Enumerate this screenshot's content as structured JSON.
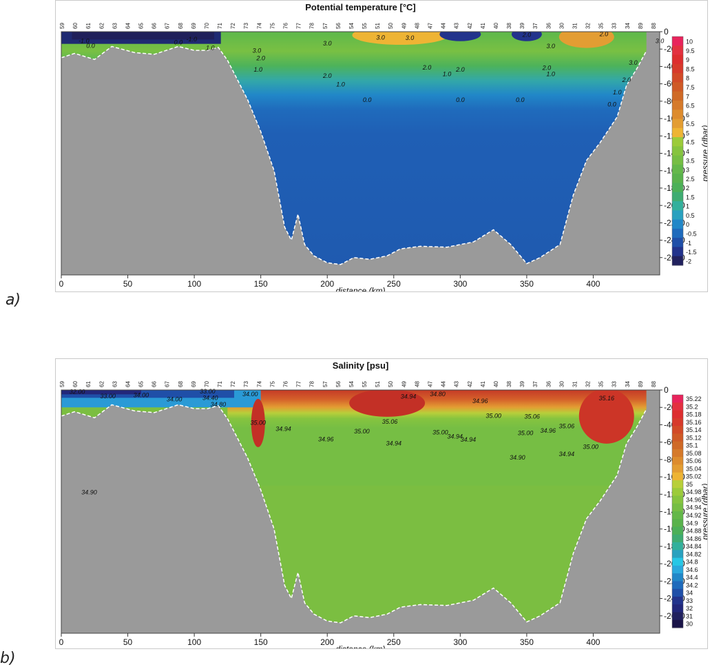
{
  "panel_labels": [
    "a)",
    "b)"
  ],
  "chart_data": [
    {
      "type": "heatmap",
      "title": "Potential temperature [°C]",
      "xlabel": "distance (km)",
      "ylabel": "pressure (dbar)",
      "xlim": [
        0,
        450
      ],
      "ylim": [
        -2800,
        0
      ],
      "xticks": [
        "0",
        "50",
        "100",
        "150",
        "200",
        "250",
        "300",
        "350",
        "400"
      ],
      "yticks": [
        "0",
        "-200",
        "-400",
        "-600",
        "-800",
        "-1000",
        "-1200",
        "-1400",
        "-1600",
        "-1800",
        "-2000",
        "-2200",
        "-2400",
        "-2600"
      ],
      "stations": [
        "59",
        "60",
        "61",
        "62",
        "63",
        "64",
        "65",
        "66",
        "67",
        "68",
        "69",
        "70",
        "71",
        "72",
        "73",
        "74",
        "75",
        "76",
        "77",
        "78",
        "57",
        "56",
        "54",
        "55",
        "51",
        "50",
        "49",
        "48",
        "47",
        "44",
        "43",
        "42",
        "41",
        "40",
        "38",
        "39",
        "37",
        "36",
        "30",
        "31",
        "32",
        "35",
        "33",
        "34",
        "89",
        "88"
      ],
      "colorbar_labels": [
        "10",
        "9.5",
        "9",
        "8.5",
        "8",
        "7.5",
        "7",
        "6.5",
        "6",
        "5.5",
        "5",
        "4.5",
        "4",
        "3.5",
        "3",
        "2.5",
        "2",
        "1.5",
        "1",
        "0.5",
        "0",
        "-0.5",
        "-1",
        "-1.5",
        "-2"
      ],
      "colorbar_colors": [
        "#e8245c",
        "#e33140",
        "#dd2e2f",
        "#d73a2b",
        "#d24a27",
        "#cf5a26",
        "#cf6a27",
        "#d57a2b",
        "#dd8c2e",
        "#e39d33",
        "#eeb434",
        "#9ccb3a",
        "#86c43f",
        "#76be44",
        "#64b84a",
        "#59b24c",
        "#4cb058",
        "#3fac72",
        "#33b09c",
        "#2aa1bf",
        "#2187c8",
        "#1f6bbc",
        "#1f4fa8",
        "#22338c",
        "#21215e"
      ],
      "contour_labels": [
        {
          "text": "-1.0",
          "x": 17,
          "y": -130
        },
        {
          "text": "0.0",
          "x": 22,
          "y": -185
        },
        {
          "text": "-1.0",
          "x": 98,
          "y": -110
        },
        {
          "text": "0.0",
          "x": 88,
          "y": -145
        },
        {
          "text": "1.0",
          "x": 112,
          "y": -210
        },
        {
          "text": "3.0",
          "x": 147,
          "y": -240
        },
        {
          "text": "2.0",
          "x": 150,
          "y": -330
        },
        {
          "text": "1.0",
          "x": 148,
          "y": -460
        },
        {
          "text": "3.0",
          "x": 200,
          "y": -160
        },
        {
          "text": "3.0",
          "x": 240,
          "y": -90
        },
        {
          "text": "3.0",
          "x": 262,
          "y": -95
        },
        {
          "text": "2.0",
          "x": 200,
          "y": -530
        },
        {
          "text": "1.0",
          "x": 210,
          "y": -630
        },
        {
          "text": "0.0",
          "x": 230,
          "y": -810
        },
        {
          "text": "2.0",
          "x": 275,
          "y": -435
        },
        {
          "text": "2.0",
          "x": 300,
          "y": -460
        },
        {
          "text": "1.0",
          "x": 290,
          "y": -510
        },
        {
          "text": "0.0",
          "x": 300,
          "y": -810
        },
        {
          "text": "2.0",
          "x": 365,
          "y": -440
        },
        {
          "text": "1.0",
          "x": 368,
          "y": -510
        },
        {
          "text": "0.0",
          "x": 345,
          "y": -810
        },
        {
          "text": "3.0",
          "x": 368,
          "y": -190
        },
        {
          "text": "2.0",
          "x": 350,
          "y": -60
        },
        {
          "text": "2.0",
          "x": 408,
          "y": -50
        },
        {
          "text": "3.0",
          "x": 450,
          "y": -130
        },
        {
          "text": "3.0",
          "x": 430,
          "y": -380
        },
        {
          "text": "2.0",
          "x": 425,
          "y": -580
        },
        {
          "text": "1.0",
          "x": 418,
          "y": -720
        },
        {
          "text": "0.0",
          "x": 414,
          "y": -860
        }
      ]
    },
    {
      "type": "heatmap",
      "title": "Salinity [psu]",
      "xlabel": "distance (km)",
      "ylabel": "pressure (dbar)",
      "xlim": [
        0,
        450
      ],
      "ylim": [
        -2800,
        0
      ],
      "xticks": [
        "0",
        "50",
        "100",
        "150",
        "200",
        "250",
        "300",
        "350",
        "400"
      ],
      "yticks": [
        "0",
        "-200",
        "-400",
        "-600",
        "-800",
        "-1000",
        "-1200",
        "-1400",
        "-1600",
        "-1800",
        "-2000",
        "-2200",
        "-2400",
        "-2600"
      ],
      "stations": [
        "59",
        "60",
        "61",
        "62",
        "63",
        "64",
        "65",
        "66",
        "67",
        "68",
        "69",
        "70",
        "71",
        "72",
        "73",
        "74",
        "75",
        "76",
        "77",
        "78",
        "57",
        "56",
        "54",
        "55",
        "51",
        "50",
        "49",
        "48",
        "47",
        "44",
        "43",
        "42",
        "41",
        "40",
        "38",
        "39",
        "37",
        "36",
        "30",
        "31",
        "32",
        "35",
        "33",
        "34",
        "89",
        "88"
      ],
      "colorbar_labels": [
        "35.22",
        "35.2",
        "35.18",
        "35.16",
        "35.14",
        "35.12",
        "35.1",
        "35.08",
        "35.06",
        "35.04",
        "35.02",
        "35",
        "34.98",
        "34.96",
        "34.94",
        "34.92",
        "34.9",
        "34.88",
        "34.86",
        "34.84",
        "34.82",
        "34.8",
        "34.6",
        "34.4",
        "34.2",
        "34",
        "33",
        "32",
        "31",
        "30"
      ],
      "colorbar_colors": [
        "#e8245c",
        "#e33140",
        "#dd2e2f",
        "#d73a2b",
        "#d24a27",
        "#cf5a26",
        "#cf6a27",
        "#d57a2b",
        "#dd8c2e",
        "#e39d33",
        "#eeb434",
        "#b8cf3a",
        "#9ccb3a",
        "#86c43f",
        "#76be44",
        "#64b84a",
        "#59b24c",
        "#4cb058",
        "#3fac72",
        "#33b09c",
        "#2aa1bf",
        "#26c7e6",
        "#2aa9dd",
        "#2187c8",
        "#1f6bbc",
        "#1f4fa8",
        "#22338c",
        "#22277a",
        "#21215e",
        "#1a1448"
      ],
      "contour_labels": [
        {
          "text": "32.00",
          "x": 12,
          "y": -45
        },
        {
          "text": "33.00",
          "x": 35,
          "y": -95
        },
        {
          "text": "34.00",
          "x": 60,
          "y": -85
        },
        {
          "text": "34.00",
          "x": 85,
          "y": -130
        },
        {
          "text": "34.40",
          "x": 112,
          "y": -115
        },
        {
          "text": "33.00",
          "x": 110,
          "y": -40
        },
        {
          "text": "34.00",
          "x": 142,
          "y": -70
        },
        {
          "text": "34.80",
          "x": 118,
          "y": -190
        },
        {
          "text": "35.00",
          "x": 148,
          "y": -400
        },
        {
          "text": "34.94",
          "x": 167,
          "y": -470
        },
        {
          "text": "34.96",
          "x": 199,
          "y": -590
        },
        {
          "text": "35.00",
          "x": 226,
          "y": -500
        },
        {
          "text": "34.94",
          "x": 250,
          "y": -640
        },
        {
          "text": "35.06",
          "x": 247,
          "y": -390
        },
        {
          "text": "34.94",
          "x": 261,
          "y": -100
        },
        {
          "text": "34.80",
          "x": 283,
          "y": -70
        },
        {
          "text": "35.00",
          "x": 285,
          "y": -510
        },
        {
          "text": "34.94",
          "x": 296,
          "y": -560
        },
        {
          "text": "34.94",
          "x": 306,
          "y": -595
        },
        {
          "text": "34.96",
          "x": 315,
          "y": -150
        },
        {
          "text": "35.00",
          "x": 325,
          "y": -320
        },
        {
          "text": "35.00",
          "x": 349,
          "y": -520
        },
        {
          "text": "34.96",
          "x": 366,
          "y": -490
        },
        {
          "text": "35.06",
          "x": 354,
          "y": -330
        },
        {
          "text": "35.06",
          "x": 380,
          "y": -440
        },
        {
          "text": "34.90",
          "x": 343,
          "y": -800
        },
        {
          "text": "34.94",
          "x": 380,
          "y": -760
        },
        {
          "text": "35.00",
          "x": 398,
          "y": -680
        },
        {
          "text": "35.16",
          "x": 410,
          "y": -120
        },
        {
          "text": "34.90",
          "x": 21,
          "y": -1200
        }
      ]
    }
  ]
}
